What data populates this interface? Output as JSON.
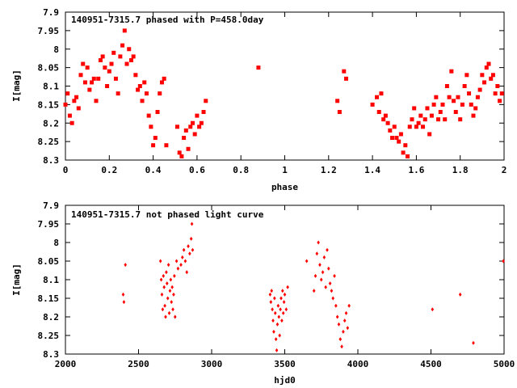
{
  "colors": {
    "points": "#ff0000",
    "axes": "#000000",
    "background": "#ffffff"
  },
  "chart_data": [
    {
      "type": "scatter",
      "title": "140951-7315.7 phased with P=458.0day",
      "xlabel": "phase",
      "ylabel": "I[mag]",
      "xlim": [
        0,
        2
      ],
      "ylim": [
        8.3,
        7.9
      ],
      "y_inverted": true,
      "xticks": [
        "0",
        "0.2",
        "0.4",
        "0.6",
        "0.8",
        "1",
        "1.2",
        "1.4",
        "1.6",
        "1.8",
        "2"
      ],
      "yticks": [
        "7.9",
        "7.95",
        "8",
        "8.05",
        "8.1",
        "8.15",
        "8.2",
        "8.25",
        "8.3"
      ],
      "marker": "filled-square",
      "series": [
        {
          "points": [
            [
              0.0,
              8.15
            ],
            [
              0.01,
              8.12
            ],
            [
              0.02,
              8.18
            ],
            [
              0.03,
              8.2
            ],
            [
              0.04,
              8.14
            ],
            [
              0.05,
              8.13
            ],
            [
              0.06,
              8.16
            ],
            [
              0.07,
              8.07
            ],
            [
              0.08,
              8.04
            ],
            [
              0.09,
              8.09
            ],
            [
              0.1,
              8.05
            ],
            [
              0.11,
              8.11
            ],
            [
              0.12,
              8.09
            ],
            [
              0.13,
              8.08
            ],
            [
              0.14,
              8.14
            ],
            [
              0.15,
              8.08
            ],
            [
              0.16,
              8.03
            ],
            [
              0.17,
              8.02
            ],
            [
              0.18,
              8.05
            ],
            [
              0.19,
              8.1
            ],
            [
              0.2,
              8.06
            ],
            [
              0.21,
              8.04
            ],
            [
              0.22,
              8.01
            ],
            [
              0.23,
              8.08
            ],
            [
              0.24,
              8.12
            ],
            [
              0.25,
              8.02
            ],
            [
              0.26,
              7.99
            ],
            [
              0.27,
              7.95
            ],
            [
              0.28,
              8.04
            ],
            [
              0.29,
              8.0
            ],
            [
              0.3,
              8.03
            ],
            [
              0.31,
              8.02
            ],
            [
              0.32,
              8.07
            ],
            [
              0.33,
              8.11
            ],
            [
              0.34,
              8.1
            ],
            [
              0.35,
              8.14
            ],
            [
              0.36,
              8.09
            ],
            [
              0.37,
              8.12
            ],
            [
              0.38,
              8.18
            ],
            [
              0.39,
              8.21
            ],
            [
              0.4,
              8.26
            ],
            [
              0.41,
              8.24
            ],
            [
              0.42,
              8.17
            ],
            [
              0.43,
              8.12
            ],
            [
              0.44,
              8.09
            ],
            [
              0.45,
              8.08
            ],
            [
              0.46,
              8.26
            ],
            [
              0.51,
              8.21
            ],
            [
              0.52,
              8.28
            ],
            [
              0.53,
              8.29
            ],
            [
              0.54,
              8.24
            ],
            [
              0.55,
              8.22
            ],
            [
              0.56,
              8.27
            ],
            [
              0.57,
              8.21
            ],
            [
              0.58,
              8.2
            ],
            [
              0.59,
              8.23
            ],
            [
              0.6,
              8.18
            ],
            [
              0.61,
              8.21
            ],
            [
              0.62,
              8.2
            ],
            [
              0.63,
              8.17
            ],
            [
              0.64,
              8.14
            ],
            [
              0.88,
              8.05
            ],
            [
              1.24,
              8.14
            ],
            [
              1.25,
              8.17
            ],
            [
              1.27,
              8.06
            ],
            [
              1.28,
              8.08
            ],
            [
              1.4,
              8.15
            ],
            [
              1.42,
              8.13
            ],
            [
              1.43,
              8.17
            ],
            [
              1.44,
              8.12
            ],
            [
              1.45,
              8.19
            ],
            [
              1.46,
              8.18
            ],
            [
              1.47,
              8.2
            ],
            [
              1.48,
              8.22
            ],
            [
              1.49,
              8.24
            ],
            [
              1.5,
              8.21
            ],
            [
              1.51,
              8.24
            ],
            [
              1.52,
              8.25
            ],
            [
              1.53,
              8.23
            ],
            [
              1.54,
              8.28
            ],
            [
              1.55,
              8.26
            ],
            [
              1.56,
              8.29
            ],
            [
              1.57,
              8.21
            ],
            [
              1.58,
              8.19
            ],
            [
              1.59,
              8.16
            ],
            [
              1.6,
              8.21
            ],
            [
              1.61,
              8.2
            ],
            [
              1.62,
              8.18
            ],
            [
              1.63,
              8.21
            ],
            [
              1.64,
              8.19
            ],
            [
              1.65,
              8.16
            ],
            [
              1.66,
              8.23
            ],
            [
              1.67,
              8.18
            ],
            [
              1.68,
              8.15
            ],
            [
              1.69,
              8.13
            ],
            [
              1.7,
              8.19
            ],
            [
              1.71,
              8.17
            ],
            [
              1.72,
              8.15
            ],
            [
              1.73,
              8.19
            ],
            [
              1.74,
              8.1
            ],
            [
              1.75,
              8.13
            ],
            [
              1.76,
              8.06
            ],
            [
              1.77,
              8.14
            ],
            [
              1.78,
              8.17
            ],
            [
              1.79,
              8.13
            ],
            [
              1.8,
              8.19
            ],
            [
              1.81,
              8.15
            ],
            [
              1.82,
              8.1
            ],
            [
              1.83,
              8.07
            ],
            [
              1.84,
              8.12
            ],
            [
              1.85,
              8.15
            ],
            [
              1.86,
              8.18
            ],
            [
              1.87,
              8.16
            ],
            [
              1.88,
              8.13
            ],
            [
              1.89,
              8.11
            ],
            [
              1.9,
              8.07
            ],
            [
              1.91,
              8.09
            ],
            [
              1.92,
              8.05
            ],
            [
              1.93,
              8.04
            ],
            [
              1.94,
              8.08
            ],
            [
              1.95,
              8.07
            ],
            [
              1.96,
              8.12
            ],
            [
              1.97,
              8.1
            ],
            [
              1.98,
              8.14
            ],
            [
              1.99,
              8.12
            ]
          ]
        }
      ]
    },
    {
      "type": "scatter",
      "title": "140951-7315.7 not phased light curve",
      "xlabel": "hjd0",
      "ylabel": "I[mag]",
      "xlim": [
        2000,
        5000
      ],
      "ylim": [
        8.3,
        7.9
      ],
      "y_inverted": true,
      "xticks": [
        "2000",
        "2500",
        "3000",
        "3500",
        "4000",
        "4500",
        "5000"
      ],
      "yticks": [
        "7.9",
        "7.95",
        "8",
        "8.05",
        "8.1",
        "8.15",
        "8.2",
        "8.25",
        "8.3"
      ],
      "marker": "small-diamond",
      "series": [
        {
          "points": [
            [
              2395,
              8.14
            ],
            [
              2400,
              8.16
            ],
            [
              2410,
              8.06
            ],
            [
              2650,
              8.05
            ],
            [
              2655,
              8.1
            ],
            [
              2660,
              8.14
            ],
            [
              2665,
              8.18
            ],
            [
              2670,
              8.09
            ],
            [
              2675,
              8.12
            ],
            [
              2680,
              8.17
            ],
            [
              2685,
              8.2
            ],
            [
              2690,
              8.08
            ],
            [
              2695,
              8.11
            ],
            [
              2700,
              8.15
            ],
            [
              2705,
              8.06
            ],
            [
              2710,
              8.19
            ],
            [
              2715,
              8.13
            ],
            [
              2720,
              8.1
            ],
            [
              2725,
              8.16
            ],
            [
              2730,
              8.12
            ],
            [
              2735,
              8.18
            ],
            [
              2740,
              8.14
            ],
            [
              2745,
              8.09
            ],
            [
              2750,
              8.2
            ],
            [
              2760,
              8.05
            ],
            [
              2770,
              8.07
            ],
            [
              2790,
              8.06
            ],
            [
              2800,
              8.04
            ],
            [
              2810,
              8.02
            ],
            [
              2820,
              8.05
            ],
            [
              2830,
              8.08
            ],
            [
              2840,
              8.01
            ],
            [
              2850,
              8.03
            ],
            [
              2860,
              7.99
            ],
            [
              2865,
              7.95
            ],
            [
              2870,
              8.02
            ],
            [
              3400,
              8.14
            ],
            [
              3405,
              8.16
            ],
            [
              3410,
              8.13
            ],
            [
              3415,
              8.18
            ],
            [
              3420,
              8.21
            ],
            [
              3425,
              8.24
            ],
            [
              3430,
              8.15
            ],
            [
              3435,
              8.19
            ],
            [
              3440,
              8.26
            ],
            [
              3445,
              8.29
            ],
            [
              3450,
              8.22
            ],
            [
              3455,
              8.17
            ],
            [
              3460,
              8.2
            ],
            [
              3465,
              8.25
            ],
            [
              3470,
              8.18
            ],
            [
              3475,
              8.15
            ],
            [
              3480,
              8.21
            ],
            [
              3485,
              8.13
            ],
            [
              3490,
              8.19
            ],
            [
              3495,
              8.16
            ],
            [
              3500,
              8.14
            ],
            [
              3510,
              8.18
            ],
            [
              3520,
              8.12
            ],
            [
              3650,
              8.05
            ],
            [
              3700,
              8.13
            ],
            [
              3710,
              8.09
            ],
            [
              3720,
              8.03
            ],
            [
              3730,
              8.0
            ],
            [
              3740,
              8.06
            ],
            [
              3750,
              8.1
            ],
            [
              3760,
              8.08
            ],
            [
              3770,
              8.04
            ],
            [
              3780,
              8.12
            ],
            [
              3790,
              8.02
            ],
            [
              3800,
              8.07
            ],
            [
              3810,
              8.11
            ],
            [
              3820,
              8.13
            ],
            [
              3830,
              8.15
            ],
            [
              3840,
              8.09
            ],
            [
              3850,
              8.17
            ],
            [
              3860,
              8.2
            ],
            [
              3870,
              8.22
            ],
            [
              3880,
              8.26
            ],
            [
              3890,
              8.28
            ],
            [
              3900,
              8.24
            ],
            [
              3910,
              8.21
            ],
            [
              3920,
              8.19
            ],
            [
              3930,
              8.23
            ],
            [
              3940,
              8.17
            ],
            [
              4510,
              8.18
            ],
            [
              4700,
              8.14
            ],
            [
              4790,
              8.27
            ],
            [
              4995,
              8.05
            ]
          ]
        }
      ]
    }
  ]
}
